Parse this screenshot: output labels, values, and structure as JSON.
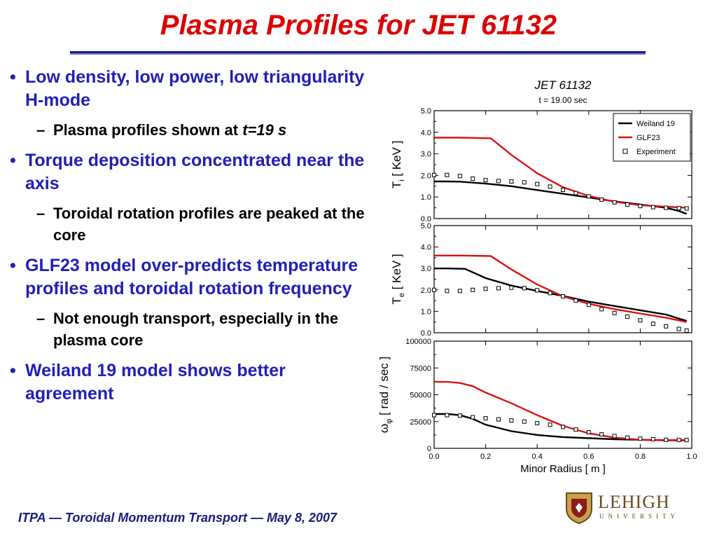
{
  "slide": {
    "title": "Plasma Profiles for JET 61132",
    "bullets": [
      {
        "text": "Low density, low power, low triangularity H-mode",
        "sub": [
          {
            "text": "Plasma profiles shown at ",
            "em": "t=19 s"
          }
        ]
      },
      {
        "text": "Torque deposition concentrated near the axis",
        "sub": [
          {
            "text": "Toroidal rotation profiles are peaked at the core",
            "em": ""
          }
        ]
      },
      {
        "text": "GLF23 model over-predicts temperature profiles and toroidal rotation frequency",
        "sub": [
          {
            "text": "Not enough transport, especially in the plasma core",
            "em": ""
          }
        ]
      },
      {
        "text": "Weiland 19 model shows better agreement",
        "sub": []
      }
    ],
    "footer": "ITPA — Toroidal Momentum Transport — May 8, 2007",
    "logo": {
      "name": "LEHIGH",
      "sub": "UNIVERSITY"
    }
  },
  "colors": {
    "title": "#dd0000",
    "bullet": "#2020b8",
    "weiland": "#000000",
    "glf": "#dd1111",
    "experiment": "#000000"
  },
  "chart_data": {
    "type": "line",
    "title": "JET 61132",
    "subtitle": "t = 19.00 sec",
    "xlabel": "Minor Radius [ m ]",
    "xlim": [
      0.0,
      1.0
    ],
    "xticks": [
      "0.0",
      "0.2",
      "0.4",
      "0.6",
      "0.8",
      "1.0"
    ],
    "legend": {
      "placement": "top-right",
      "entries": [
        "Weiland 19",
        "GLF23",
        "Experiment"
      ]
    },
    "panels": [
      {
        "ylabel": "T",
        "ysub": "i",
        "yunit": " [ KeV ]",
        "ylim": [
          0,
          5
        ],
        "yticks": [
          "0.0",
          "1.0",
          "2.0",
          "3.0",
          "4.0",
          "5.0"
        ],
        "series": [
          {
            "name": "Weiland 19",
            "style": "line",
            "x": [
              0.0,
              0.05,
              0.1,
              0.2,
              0.3,
              0.4,
              0.5,
              0.6,
              0.7,
              0.8,
              0.9,
              0.95,
              0.98
            ],
            "y": [
              1.72,
              1.72,
              1.71,
              1.62,
              1.5,
              1.32,
              1.15,
              0.98,
              0.8,
              0.65,
              0.5,
              0.35,
              0.22
            ]
          },
          {
            "name": "GLF23",
            "style": "line",
            "x": [
              0.0,
              0.1,
              0.22,
              0.3,
              0.4,
              0.5,
              0.6,
              0.7,
              0.8,
              0.9,
              0.95,
              0.98
            ],
            "y": [
              3.75,
              3.75,
              3.72,
              2.95,
              2.1,
              1.45,
              1.05,
              0.78,
              0.62,
              0.55,
              0.52,
              0.5
            ]
          },
          {
            "name": "Experiment",
            "style": "markers",
            "x": [
              0.0,
              0.05,
              0.1,
              0.15,
              0.2,
              0.25,
              0.3,
              0.35,
              0.4,
              0.45,
              0.5,
              0.55,
              0.6,
              0.65,
              0.7,
              0.75,
              0.8,
              0.85,
              0.9,
              0.95,
              0.98
            ],
            "y": [
              2.02,
              2.02,
              1.97,
              1.85,
              1.78,
              1.74,
              1.72,
              1.68,
              1.6,
              1.48,
              1.33,
              1.18,
              1.03,
              0.88,
              0.75,
              0.65,
              0.58,
              0.53,
              0.5,
              0.48,
              0.47
            ]
          }
        ]
      },
      {
        "ylabel": "T",
        "ysub": "e",
        "yunit": " [ KeV ]",
        "ylim": [
          0,
          5
        ],
        "yticks": [
          "0.0",
          "1.0",
          "2.0",
          "3.0",
          "4.0",
          "5.0"
        ],
        "series": [
          {
            "name": "Weiland 19",
            "style": "line",
            "x": [
              0.0,
              0.05,
              0.12,
              0.2,
              0.3,
              0.4,
              0.5,
              0.6,
              0.7,
              0.8,
              0.9,
              0.98
            ],
            "y": [
              3.0,
              3.0,
              2.98,
              2.55,
              2.2,
              1.95,
              1.72,
              1.45,
              1.25,
              1.05,
              0.85,
              0.55
            ]
          },
          {
            "name": "GLF23",
            "style": "line",
            "x": [
              0.0,
              0.1,
              0.22,
              0.3,
              0.4,
              0.5,
              0.6,
              0.7,
              0.8,
              0.9,
              0.98
            ],
            "y": [
              3.6,
              3.6,
              3.58,
              2.95,
              2.25,
              1.7,
              1.35,
              1.1,
              0.9,
              0.7,
              0.5
            ]
          },
          {
            "name": "Experiment",
            "style": "markers",
            "x": [
              0.0,
              0.05,
              0.1,
              0.15,
              0.2,
              0.25,
              0.3,
              0.35,
              0.4,
              0.45,
              0.5,
              0.55,
              0.6,
              0.65,
              0.7,
              0.75,
              0.8,
              0.85,
              0.9,
              0.95,
              0.98
            ],
            "y": [
              2.0,
              1.95,
              1.95,
              2.0,
              2.05,
              2.08,
              2.1,
              2.08,
              1.98,
              1.85,
              1.7,
              1.5,
              1.3,
              1.1,
              0.92,
              0.75,
              0.58,
              0.42,
              0.3,
              0.18,
              0.1
            ]
          }
        ]
      },
      {
        "ylabel": "ω",
        "ysub": "φ",
        "yunit": " [ rad / sec ]",
        "ylim": [
          0,
          100000
        ],
        "yticks": [
          "0",
          "25000",
          "50000",
          "75000",
          "100000"
        ],
        "series": [
          {
            "name": "Weiland 19",
            "style": "line",
            "x": [
              0.0,
              0.05,
              0.1,
              0.15,
              0.2,
              0.3,
              0.4,
              0.5,
              0.6,
              0.7,
              0.8,
              0.9,
              0.98
            ],
            "y": [
              32000,
              32000,
              31000,
              27500,
              22000,
              16000,
              12500,
              10500,
              9500,
              8500,
              8000,
              7500,
              7500
            ]
          },
          {
            "name": "GLF23",
            "style": "line",
            "x": [
              0.0,
              0.05,
              0.1,
              0.15,
              0.2,
              0.3,
              0.4,
              0.5,
              0.6,
              0.7,
              0.8,
              0.9,
              0.98
            ],
            "y": [
              62000,
              62000,
              61000,
              58000,
              52000,
              42000,
              31000,
              21000,
              14000,
              10000,
              8000,
              7500,
              7500
            ]
          },
          {
            "name": "Experiment",
            "style": "markers",
            "x": [
              0.0,
              0.05,
              0.1,
              0.15,
              0.2,
              0.25,
              0.3,
              0.35,
              0.4,
              0.45,
              0.5,
              0.55,
              0.6,
              0.65,
              0.7,
              0.75,
              0.8,
              0.85,
              0.9,
              0.95,
              0.98
            ],
            "y": [
              31000,
              31000,
              30500,
              29000,
              28000,
              27000,
              26000,
              25000,
              23500,
              22000,
              20000,
              17500,
              15000,
              13000,
              11500,
              10000,
              9000,
              8500,
              8000,
              7800,
              7700
            ]
          }
        ]
      }
    ]
  }
}
